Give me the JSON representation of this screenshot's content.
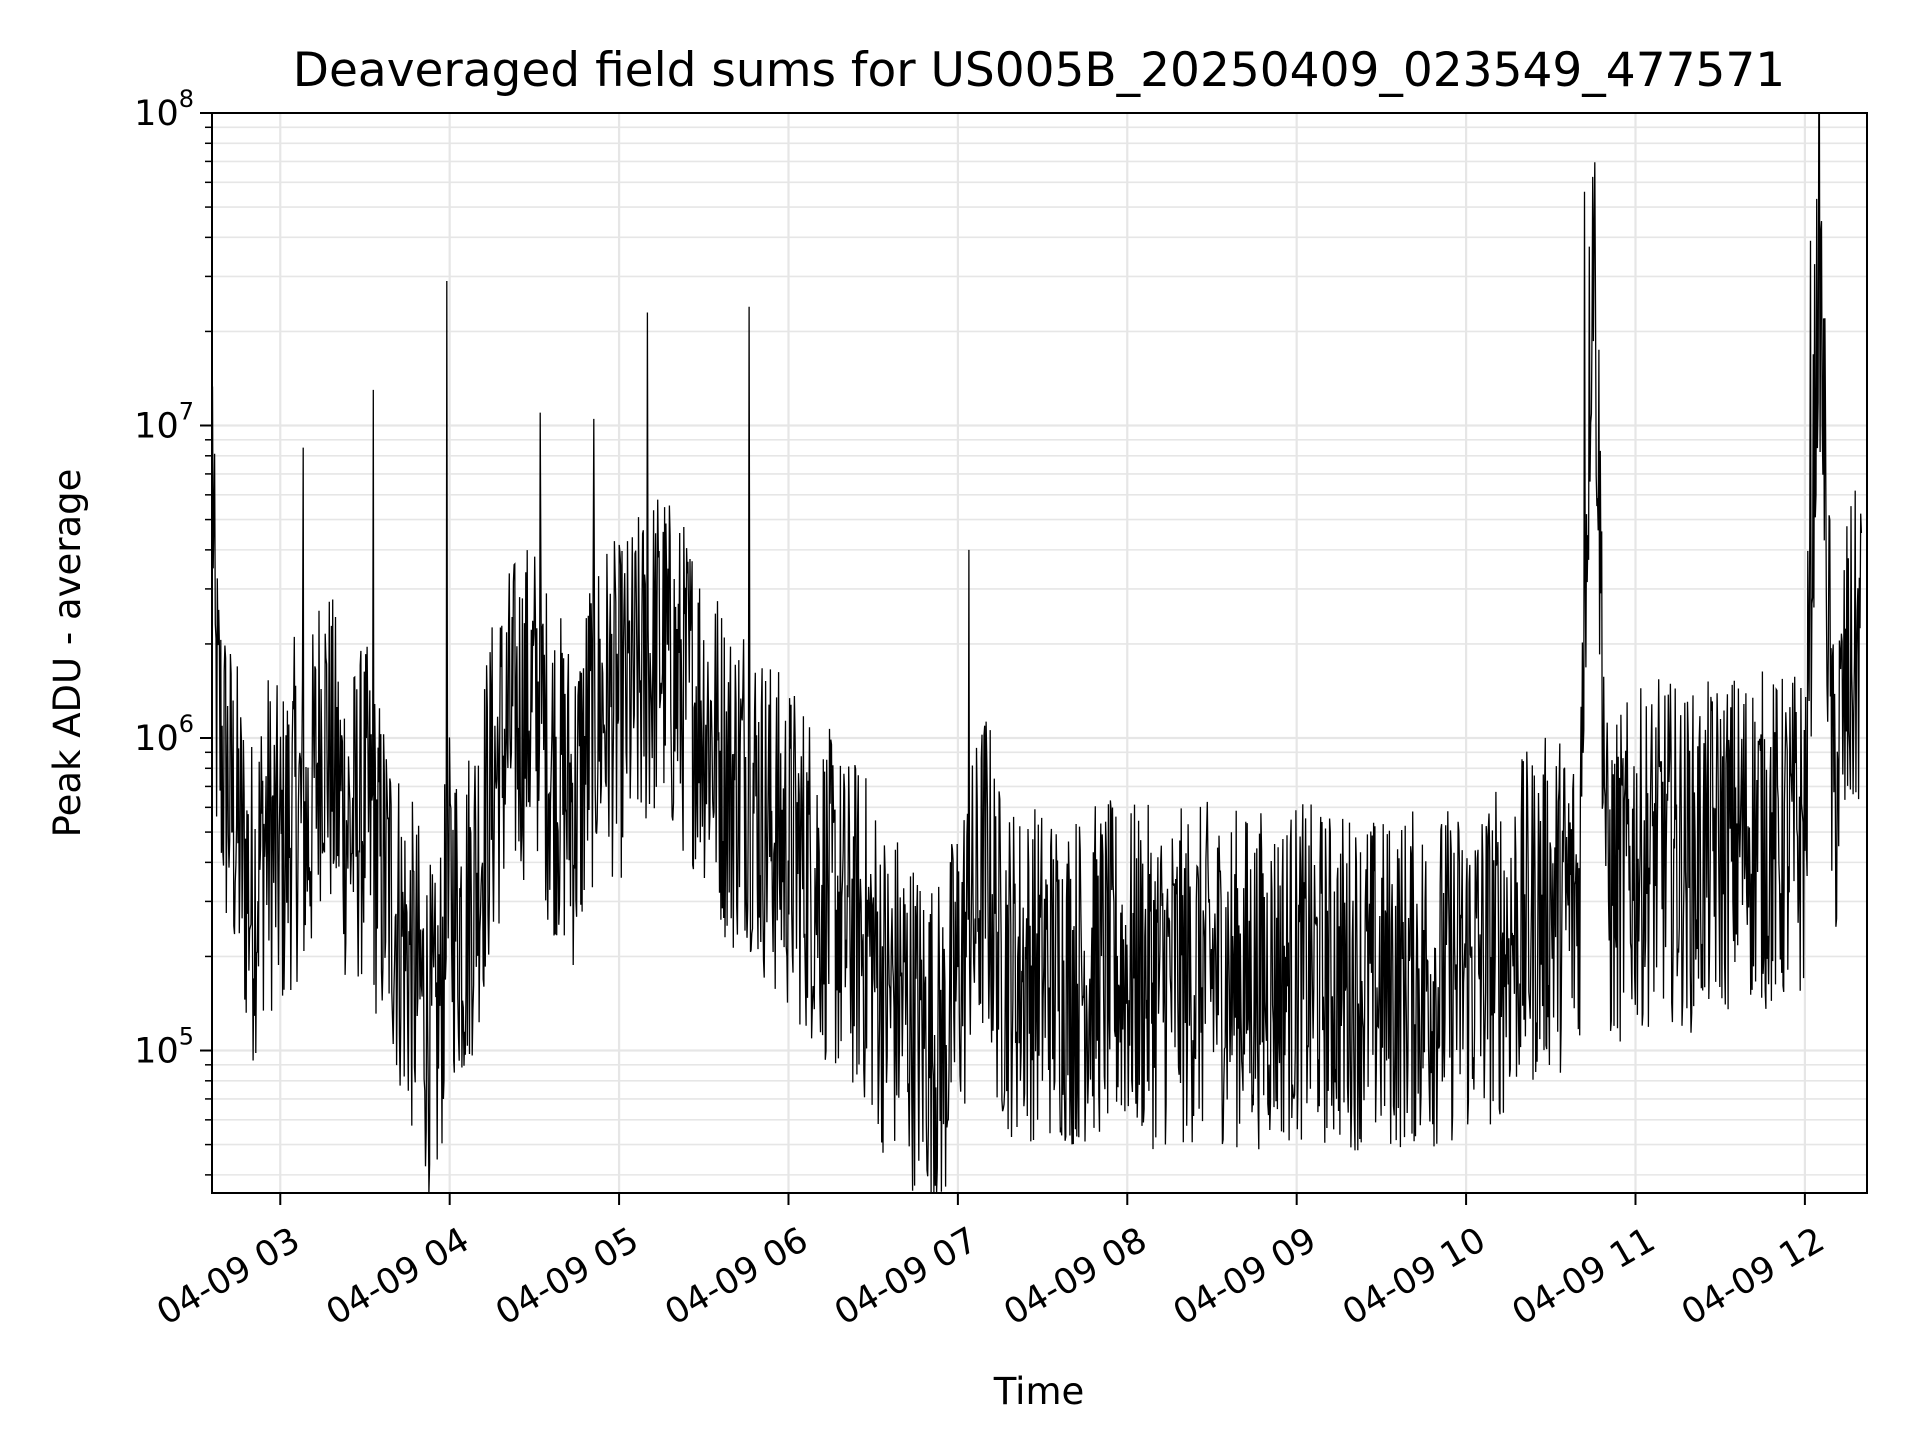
{
  "chart_data": {
    "type": "line",
    "title": "Deaveraged field sums for US005B_20250409_023549_477571",
    "xlabel": "Time",
    "ylabel": "Peak ADU - average",
    "y_scale": "log",
    "ylim": [
      35000,
      100000000
    ],
    "xlim": [
      "2025-04-09 02:35:49",
      "2025-04-09 12:22:00"
    ],
    "grid": true,
    "line_color": "#000000",
    "grid_color": "#e6e6e6",
    "x_ticks": [
      {
        "time": "2025-04-09 03:00",
        "label": "04-09 03"
      },
      {
        "time": "2025-04-09 04:00",
        "label": "04-09 04"
      },
      {
        "time": "2025-04-09 05:00",
        "label": "04-09 05"
      },
      {
        "time": "2025-04-09 06:00",
        "label": "04-09 06"
      },
      {
        "time": "2025-04-09 07:00",
        "label": "04-09 07"
      },
      {
        "time": "2025-04-09 08:00",
        "label": "04-09 08"
      },
      {
        "time": "2025-04-09 09:00",
        "label": "04-09 09"
      },
      {
        "time": "2025-04-09 10:00",
        "label": "04-09 10"
      },
      {
        "time": "2025-04-09 11:00",
        "label": "04-09 11"
      },
      {
        "time": "2025-04-09 12:00",
        "label": "04-09 12"
      }
    ],
    "y_ticks": [
      {
        "value": 100000,
        "base": "10",
        "exp": "5"
      },
      {
        "value": 1000000,
        "base": "10",
        "exp": "6"
      },
      {
        "value": 10000000,
        "base": "10",
        "exp": "7"
      },
      {
        "value": 100000000,
        "base": "10",
        "exp": "8"
      }
    ],
    "series": [
      {
        "values_note_x_units": "time",
        "x": [
          "2025-04-09 02:36",
          "2025-04-09 02:37",
          "2025-04-09 02:40",
          "2025-04-09 02:45",
          "2025-04-09 02:50",
          "2025-04-09 02:55",
          "2025-04-09 03:00",
          "2025-04-09 03:05",
          "2025-04-09 03:10",
          "2025-04-09 03:15",
          "2025-04-09 03:20",
          "2025-04-09 03:25",
          "2025-04-09 03:30",
          "2025-04-09 03:35",
          "2025-04-09 03:40",
          "2025-04-09 03:45",
          "2025-04-09 03:50",
          "2025-04-09 03:55",
          "2025-04-09 04:00",
          "2025-04-09 04:05",
          "2025-04-09 04:10",
          "2025-04-09 04:15",
          "2025-04-09 04:20",
          "2025-04-09 04:25",
          "2025-04-09 04:30",
          "2025-04-09 04:35",
          "2025-04-09 04:40",
          "2025-04-09 04:45",
          "2025-04-09 04:50",
          "2025-04-09 04:55",
          "2025-04-09 05:00",
          "2025-04-09 05:05",
          "2025-04-09 05:10",
          "2025-04-09 05:15",
          "2025-04-09 05:20",
          "2025-04-09 05:25",
          "2025-04-09 05:30",
          "2025-04-09 05:35",
          "2025-04-09 05:40",
          "2025-04-09 05:45",
          "2025-04-09 05:50",
          "2025-04-09 05:55",
          "2025-04-09 06:00",
          "2025-04-09 06:05",
          "2025-04-09 06:10",
          "2025-04-09 06:15",
          "2025-04-09 06:20",
          "2025-04-09 06:25",
          "2025-04-09 06:30",
          "2025-04-09 06:35",
          "2025-04-09 06:40",
          "2025-04-09 06:45",
          "2025-04-09 06:50",
          "2025-04-09 06:55",
          "2025-04-09 07:00",
          "2025-04-09 07:05",
          "2025-04-09 07:10",
          "2025-04-09 07:15",
          "2025-04-09 07:20",
          "2025-04-09 07:30",
          "2025-04-09 07:40",
          "2025-04-09 07:50",
          "2025-04-09 08:00",
          "2025-04-09 08:10",
          "2025-04-09 08:20",
          "2025-04-09 08:30",
          "2025-04-09 08:40",
          "2025-04-09 08:50",
          "2025-04-09 09:00",
          "2025-04-09 09:10",
          "2025-04-09 09:20",
          "2025-04-09 09:30",
          "2025-04-09 09:40",
          "2025-04-09 09:50",
          "2025-04-09 10:00",
          "2025-04-09 10:10",
          "2025-04-09 10:20",
          "2025-04-09 10:30",
          "2025-04-09 10:40",
          "2025-04-09 10:45",
          "2025-04-09 10:50",
          "2025-04-09 11:00",
          "2025-04-09 11:10",
          "2025-04-09 11:20",
          "2025-04-09 11:30",
          "2025-04-09 11:40",
          "2025-04-09 11:50",
          "2025-04-09 12:00",
          "2025-04-09 12:05",
          "2025-04-09 12:10",
          "2025-04-09 12:15",
          "2025-04-09 12:20"
        ],
        "y": [
          9000000,
          1400000,
          800000,
          500000,
          300000,
          500000,
          400000,
          600000,
          500000,
          1200000,
          700000,
          500000,
          600000,
          400000,
          300000,
          200000,
          150000,
          100000,
          300000,
          250000,
          400000,
          700000,
          1000000,
          1200000,
          1300000,
          900000,
          700000,
          600000,
          1100000,
          1300000,
          1200000,
          1400000,
          1700000,
          2000000,
          1500000,
          1400000,
          1200000,
          900000,
          700000,
          800000,
          600000,
          500000,
          450000,
          400000,
          350000,
          300000,
          250000,
          250000,
          200000,
          150000,
          150000,
          120000,
          110000,
          100000,
          180000,
          250000,
          400000,
          200000,
          180000,
          180000,
          170000,
          180000,
          180000,
          170000,
          170000,
          180000,
          170000,
          170000,
          180000,
          170000,
          170000,
          160000,
          170000,
          170000,
          180000,
          200000,
          250000,
          300000,
          300000,
          56000000,
          320000,
          400000,
          450000,
          400000,
          450000,
          500000,
          450000,
          500000,
          40000000,
          600000,
          1500000,
          2000000
        ]
      }
    ],
    "spikes": [
      {
        "x": "2025-04-09 03:59",
        "y": 29000000
      },
      {
        "x": "2025-04-09 03:33",
        "y": 13000000
      },
      {
        "x": "2025-04-09 03:08",
        "y": 8500000
      },
      {
        "x": "2025-04-09 04:32",
        "y": 11000000
      },
      {
        "x": "2025-04-09 04:51",
        "y": 10500000
      },
      {
        "x": "2025-04-09 05:10",
        "y": 23000000
      },
      {
        "x": "2025-04-09 05:46",
        "y": 24000000
      },
      {
        "x": "2025-04-09 07:04",
        "y": 4000000
      },
      {
        "x": "2025-04-09 10:42",
        "y": 56000000
      },
      {
        "x": "2025-04-09 12:02",
        "y": 39000000
      }
    ]
  }
}
